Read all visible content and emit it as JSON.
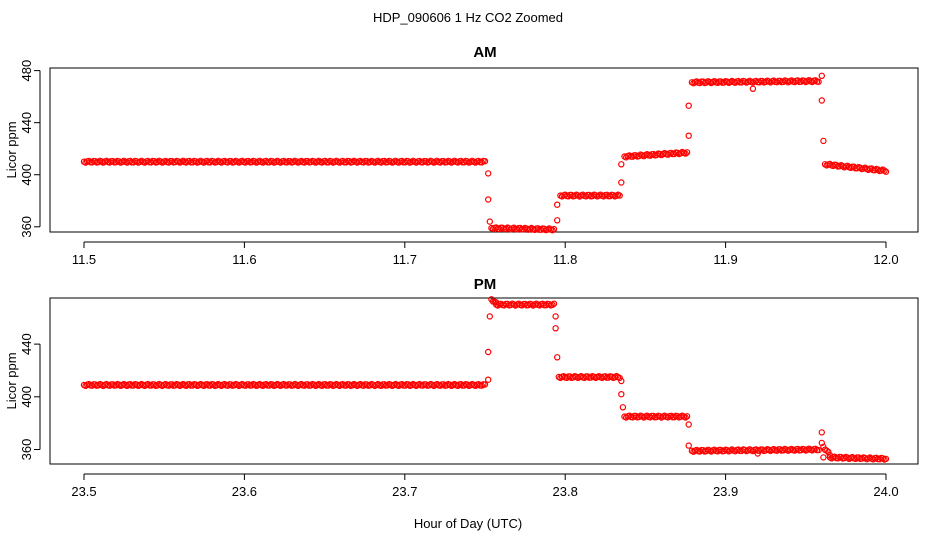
{
  "figure": {
    "title": "HDP_090606  1 Hz CO2 Zoomed",
    "xlabel": "Hour of Day (UTC)"
  },
  "chart_data": [
    {
      "type": "scatter",
      "title": "AM",
      "xlabel": "",
      "ylabel": "Licor ppm",
      "xlim": [
        11.5,
        12.0
      ],
      "ylim": [
        356,
        482
      ],
      "xticks": [
        11.5,
        11.6,
        11.7,
        11.8,
        11.9,
        12.0
      ],
      "xtick_labels": [
        "11.5",
        "11.6",
        "11.7",
        "11.8",
        "11.9",
        "12.0"
      ],
      "yticks": [
        360,
        400,
        440,
        480
      ],
      "ytick_labels": [
        "360",
        "400",
        "440",
        "480"
      ],
      "grid": false,
      "legend": "none",
      "marker": "open-circle",
      "color": "#ff0000",
      "series": [
        {
          "segments": [
            {
              "x": [
                11.5,
                11.75
              ],
              "y": [
                410,
                410
              ]
            },
            {
              "x": [
                11.754,
                11.793
              ],
              "y": [
                359,
                358
              ]
            },
            {
              "x": [
                11.797,
                11.834
              ],
              "y": [
                384,
                384
              ]
            },
            {
              "x": [
                11.837,
                11.876
              ],
              "y": [
                414,
                417
              ]
            },
            {
              "x": [
                11.879,
                11.958
              ],
              "y": [
                471,
                472
              ]
            },
            {
              "x": [
                11.962,
                12.0
              ],
              "y": [
                408,
                403
              ]
            }
          ],
          "points": [
            {
              "x": 11.752,
              "y": 401
            },
            {
              "x": 11.752,
              "y": 381
            },
            {
              "x": 11.753,
              "y": 364
            },
            {
              "x": 11.795,
              "y": 365
            },
            {
              "x": 11.795,
              "y": 377
            },
            {
              "x": 11.835,
              "y": 394
            },
            {
              "x": 11.835,
              "y": 408
            },
            {
              "x": 11.877,
              "y": 430
            },
            {
              "x": 11.877,
              "y": 453
            },
            {
              "x": 11.917,
              "y": 466
            },
            {
              "x": 11.96,
              "y": 476
            },
            {
              "x": 11.96,
              "y": 457
            },
            {
              "x": 11.961,
              "y": 426
            }
          ]
        }
      ]
    },
    {
      "type": "scatter",
      "title": "PM",
      "xlabel": "",
      "ylabel": "Licor ppm",
      "xlim": [
        23.5,
        24.0
      ],
      "ylim": [
        349,
        475
      ],
      "xticks": [
        23.5,
        23.6,
        23.7,
        23.8,
        23.9,
        24.0
      ],
      "xtick_labels": [
        "23.5",
        "23.6",
        "23.7",
        "23.8",
        "23.9",
        "24.0"
      ],
      "yticks": [
        360,
        400,
        440
      ],
      "ytick_labels": [
        "360",
        "400",
        "440"
      ],
      "grid": false,
      "legend": "none",
      "marker": "open-circle",
      "color": "#ff0000",
      "series": [
        {
          "segments": [
            {
              "x": [
                23.5,
                23.75
              ],
              "y": [
                409,
                409
              ]
            },
            {
              "x": [
                23.754,
                23.757
              ],
              "y": [
                474,
                471
              ]
            },
            {
              "x": [
                23.757,
                23.793
              ],
              "y": [
                470,
                470
              ]
            },
            {
              "x": [
                23.796,
                23.834
              ],
              "y": [
                415,
                415
              ]
            },
            {
              "x": [
                23.837,
                23.876
              ],
              "y": [
                385,
                385
              ]
            },
            {
              "x": [
                23.879,
                23.958
              ],
              "y": [
                359,
                360
              ]
            },
            {
              "x": [
                23.961,
                23.965
              ],
              "y": [
                362,
                356
              ]
            },
            {
              "x": [
                23.965,
                24.0
              ],
              "y": [
                354,
                353
              ]
            }
          ],
          "points": [
            {
              "x": 23.752,
              "y": 413
            },
            {
              "x": 23.752,
              "y": 434
            },
            {
              "x": 23.753,
              "y": 461
            },
            {
              "x": 23.794,
              "y": 461
            },
            {
              "x": 23.794,
              "y": 452
            },
            {
              "x": 23.795,
              "y": 430
            },
            {
              "x": 23.835,
              "y": 412
            },
            {
              "x": 23.835,
              "y": 402
            },
            {
              "x": 23.836,
              "y": 392
            },
            {
              "x": 23.877,
              "y": 379
            },
            {
              "x": 23.877,
              "y": 363
            },
            {
              "x": 23.92,
              "y": 357
            },
            {
              "x": 23.96,
              "y": 373
            },
            {
              "x": 23.96,
              "y": 365
            },
            {
              "x": 23.961,
              "y": 354
            }
          ]
        }
      ]
    }
  ]
}
